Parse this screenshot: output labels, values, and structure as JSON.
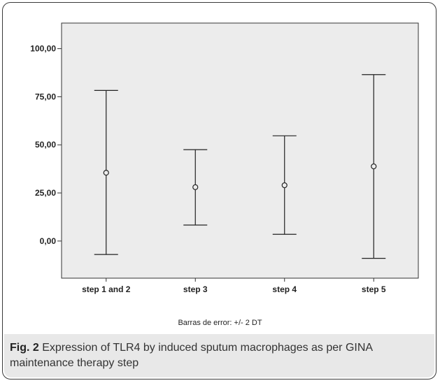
{
  "chart_data": {
    "type": "error_bar",
    "categories": [
      "step 1 and 2",
      "step 3",
      "step 4",
      "step 5"
    ],
    "series": [
      {
        "means": [
          35.5,
          28.0,
          29.0,
          38.8
        ],
        "lower": [
          -7.0,
          8.3,
          3.5,
          -9.0
        ],
        "upper": [
          78.3,
          47.5,
          54.7,
          86.5
        ]
      }
    ],
    "y_ticks": [
      "100,00",
      "75,00",
      "50,00",
      "25,00",
      "0,00"
    ],
    "y_tick_values": [
      100,
      75,
      50,
      25,
      0
    ],
    "ylim": [
      -19.3,
      113.3
    ],
    "xlabel": "",
    "ylabel": "",
    "grid": false,
    "plot_bg": "#ececec",
    "footnote": "Barras de error: +/- 2 DT"
  },
  "caption": {
    "label": "Fig. 2",
    "text": " Expression of TLR4 by induced sputum macrophages as per GINA maintenance therapy step"
  }
}
